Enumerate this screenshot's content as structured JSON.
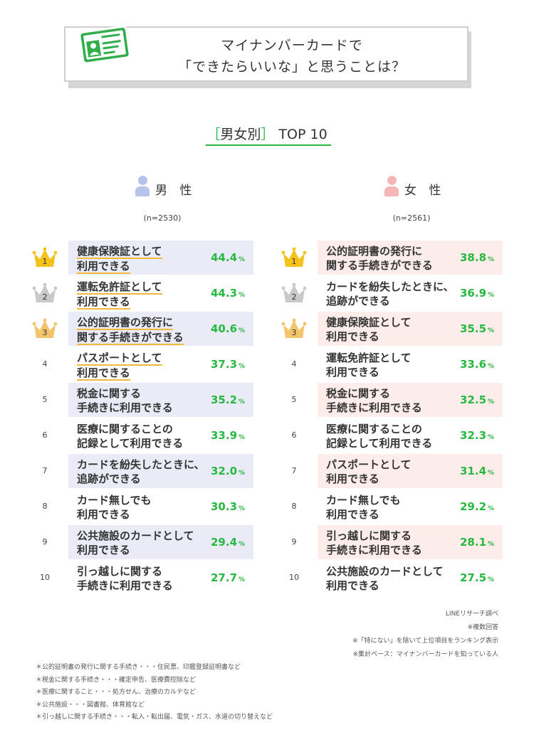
{
  "title": {
    "line1": "マイナンバーカードで",
    "line2": "「できたらいいな」と思うことは？",
    "icon": "id-card-icon",
    "accent": "#27b840"
  },
  "section": {
    "bracket_open": "［",
    "heading": "男女別",
    "bracket_close": "］",
    "top": "TOP 10"
  },
  "chart_data": {
    "type": "table",
    "unit": "%",
    "male": {
      "label": "男 性",
      "n": "(n=2530)",
      "items": [
        {
          "rank": "1",
          "line1": "健康保険証として",
          "line2": "利用できる",
          "value": "44.4"
        },
        {
          "rank": "2",
          "line1": "運転免許証として",
          "line2": "利用できる",
          "value": "44.3"
        },
        {
          "rank": "3",
          "line1": "公的証明書の発行に",
          "line2": "関する手続きができる",
          "value": "40.6"
        },
        {
          "rank": "4",
          "line1": "パスポートとして",
          "line2": "利用できる",
          "value": "37.3"
        },
        {
          "rank": "5",
          "line1": "税金に関する",
          "line2": "手続きに利用できる",
          "value": "35.2"
        },
        {
          "rank": "6",
          "line1": "医療に関することの",
          "line2": "記録として利用できる",
          "value": "33.9"
        },
        {
          "rank": "7",
          "line1": "カードを紛失したときに、",
          "line2": "追跡ができる",
          "value": "32.0"
        },
        {
          "rank": "8",
          "line1": "カード無しでも",
          "line2": "利用できる",
          "value": "30.3"
        },
        {
          "rank": "9",
          "line1": "公共施設のカードとして",
          "line2": "利用できる",
          "value": "29.4"
        },
        {
          "rank": "10",
          "line1": "引っ越しに関する",
          "line2": "手続きに利用できる",
          "value": "27.7"
        }
      ]
    },
    "female": {
      "label": "女 性",
      "n": "(n=2561)",
      "items": [
        {
          "rank": "1",
          "line1": "公的証明書の発行に",
          "line2": "関する手続きができる",
          "value": "38.8"
        },
        {
          "rank": "2",
          "line1": "カードを紛失したときに、",
          "line2": "追跡ができる",
          "value": "36.9"
        },
        {
          "rank": "3",
          "line1": "健康保険証として",
          "line2": "利用できる",
          "value": "35.5"
        },
        {
          "rank": "4",
          "line1": "運転免許証として",
          "line2": "利用できる",
          "value": "33.6"
        },
        {
          "rank": "5",
          "line1": "税金に関する",
          "line2": "手続きに利用できる",
          "value": "32.5"
        },
        {
          "rank": "6",
          "line1": "医療に関することの",
          "line2": "記録として利用できる",
          "value": "32.3"
        },
        {
          "rank": "7",
          "line1": "パスポートとして",
          "line2": "利用できる",
          "value": "31.4"
        },
        {
          "rank": "8",
          "line1": "カード無しでも",
          "line2": "利用できる",
          "value": "29.2"
        },
        {
          "rank": "9",
          "line1": "引っ越しに関する",
          "line2": "手続きに利用できる",
          "value": "28.1"
        },
        {
          "rank": "10",
          "line1": "公共施設のカードとして",
          "line2": "利用できる",
          "value": "27.5"
        }
      ]
    }
  },
  "colors": {
    "value_green": "#27b840",
    "male_row": "#e9ecf7",
    "female_row": "#fcecea",
    "gold": "#f5c21b",
    "silver": "#c9c9c9",
    "bronze": "#f3c56a",
    "underline": "#f0b93a"
  },
  "notes_right": [
    "LINEリサーチ調べ",
    "※複数回答",
    "※「特にない」を除いて上位項目をランキング表示",
    "※集計ベース：マイナンバーカードを知っている人"
  ],
  "notes_left": [
    "＊公的証明書の発行に関する手続き・・・住民票、印鑑登録証明書など",
    "＊税金に関する手続き・・・確定申告、医療費控除など",
    "＊医療に関すること・・・処方せん、治療のカルテなど",
    "＊公共施設・・・図書館、体育館など",
    "＊引っ越しに関する手続き・・・転入・転出届、電気・ガス、水道の切り替えなど"
  ]
}
